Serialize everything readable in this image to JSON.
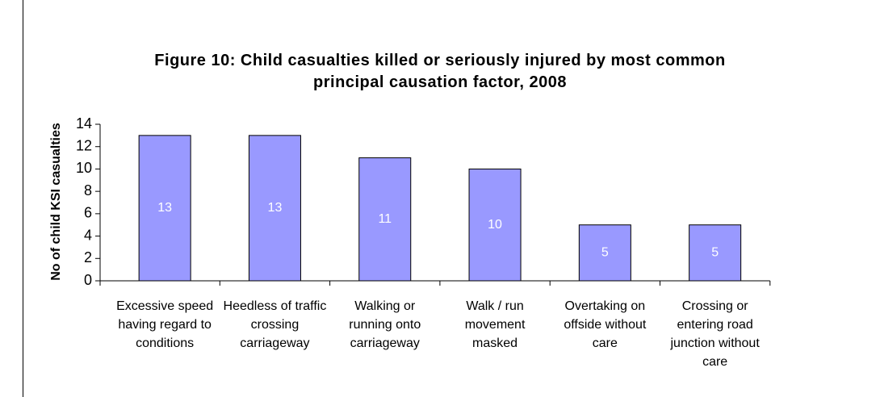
{
  "chart_data": {
    "type": "bar",
    "title": "Figure 10: Child casualties killed or seriously injured by most common principal causation factor, 2008",
    "y_label": "No of child KSI casualties",
    "categories": [
      "Excessive speed having regard to conditions",
      "Heedless of traffic crossing carriageway",
      "Walking or running onto carriageway",
      "Walk / run movement masked",
      "Overtaking on offside without care",
      "Crossing or entering road junction without care"
    ],
    "values": [
      13,
      13,
      11,
      10,
      5,
      5
    ],
    "color": "#9999ff",
    "ylim": [
      0,
      14
    ],
    "yticks": [
      0,
      2,
      4,
      6,
      8,
      10,
      12,
      14
    ],
    "grid": false
  }
}
